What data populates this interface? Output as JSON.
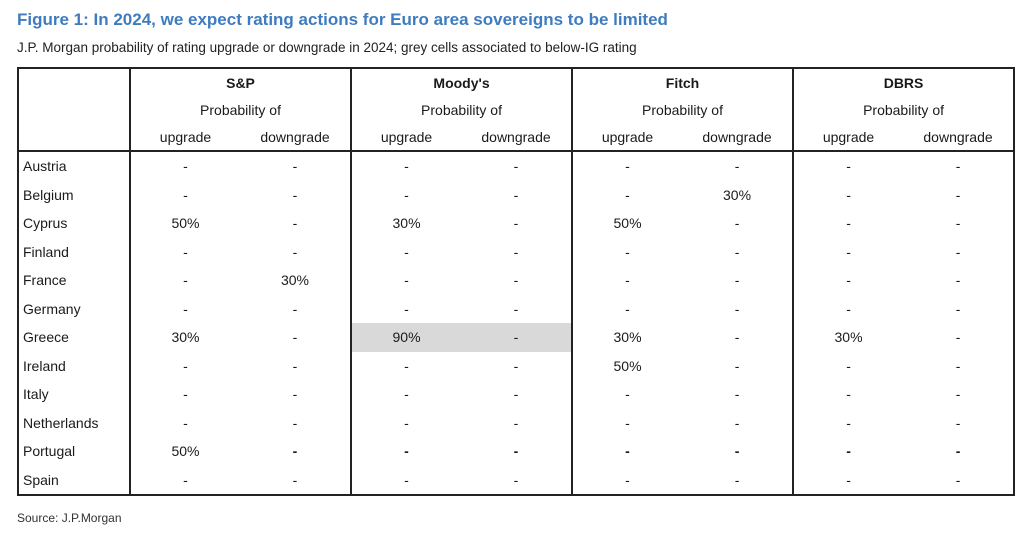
{
  "title": "Figure 1: In 2024, we expect rating actions for Euro area sovereigns to be limited",
  "subtitle": "J.P. Morgan probability of rating upgrade or downgrade in 2024; grey cells associated to below-IG rating",
  "source": "Source: J.P.Morgan",
  "agencies": [
    "S&P",
    "Moody's",
    "Fitch",
    "DBRS"
  ],
  "prob_label": "Probability of",
  "col_labels": {
    "up": "upgrade",
    "down": "downgrade"
  },
  "rows": [
    {
      "country": "Austria",
      "values": [
        "-",
        "-",
        "-",
        "-",
        "-",
        "-",
        "-",
        "-"
      ]
    },
    {
      "country": "Belgium",
      "values": [
        "-",
        "-",
        "-",
        "-",
        "-",
        "30%",
        "-",
        "-"
      ]
    },
    {
      "country": "Cyprus",
      "values": [
        "50%",
        "-",
        "30%",
        "-",
        "50%",
        "-",
        "-",
        "-"
      ]
    },
    {
      "country": "Finland",
      "values": [
        "-",
        "-",
        "-",
        "-",
        "-",
        "-",
        "-",
        "-"
      ]
    },
    {
      "country": "France",
      "values": [
        "-",
        "30%",
        "-",
        "-",
        "-",
        "-",
        "-",
        "-"
      ]
    },
    {
      "country": "Germany",
      "values": [
        "-",
        "-",
        "-",
        "-",
        "-",
        "-",
        "-",
        "-"
      ]
    },
    {
      "country": "Greece",
      "values": [
        "30%",
        "-",
        "90%",
        "-",
        "30%",
        "-",
        "30%",
        "-"
      ],
      "grey_agency": 1
    },
    {
      "country": "Ireland",
      "values": [
        "-",
        "-",
        "-",
        "-",
        "50%",
        "-",
        "-",
        "-"
      ]
    },
    {
      "country": "Italy",
      "values": [
        "-",
        "-",
        "-",
        "-",
        "-",
        "-",
        "-",
        "-"
      ]
    },
    {
      "country": "Netherlands",
      "values": [
        "-",
        "-",
        "-",
        "-",
        "-",
        "-",
        "-",
        "-"
      ]
    },
    {
      "country": "Portugal",
      "values": [
        "50%",
        "-",
        "-",
        "-",
        "-",
        "-",
        "-",
        "-"
      ],
      "emphasis": true
    },
    {
      "country": "Spain",
      "values": [
        "-",
        "-",
        "-",
        "-",
        "-",
        "-",
        "-",
        "-"
      ]
    }
  ]
}
